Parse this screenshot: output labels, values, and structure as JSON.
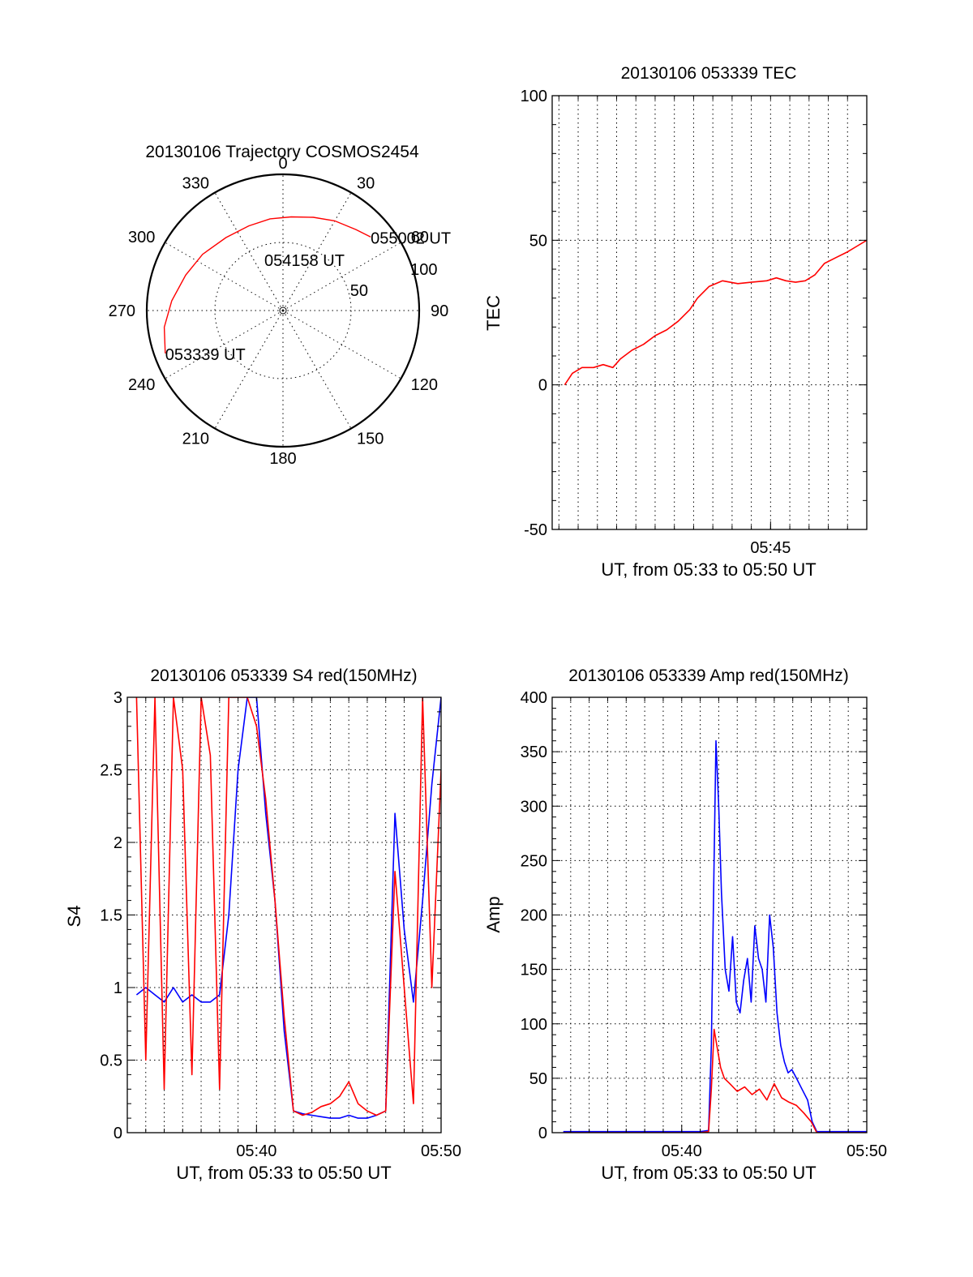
{
  "chart_data": [
    {
      "id": "polar",
      "type": "scatter",
      "projection": "polar",
      "title": "20130106 Trajectory COSMOS2454",
      "angle_labels": [
        "0",
        "30",
        "60",
        "90",
        "120",
        "150",
        "180",
        "210",
        "240",
        "270",
        "300",
        "330"
      ],
      "angle_values": [
        0,
        30,
        60,
        90,
        120,
        150,
        180,
        210,
        240,
        270,
        300,
        330
      ],
      "radial_labels": [
        "50",
        "100"
      ],
      "radial_values": [
        50,
        100
      ],
      "grid": true,
      "trajectory_color": "#ff0000",
      "trajectory": {
        "azimuth": [
          250,
          262,
          275,
          290,
          305,
          322,
          338,
          352,
          5,
          18,
          30,
          42,
          50
        ],
        "zenith": [
          92,
          88,
          82,
          76,
          72,
          68,
          67,
          68,
          69,
          72,
          76,
          80,
          84
        ]
      },
      "annotations": [
        {
          "text": "053339 UT",
          "azimuth": 250,
          "zenith": 92
        },
        {
          "text": "054158 UT",
          "azimuth": 340,
          "zenith": 40
        },
        {
          "text": "055002 UT",
          "azimuth": 50,
          "zenith": 84
        }
      ]
    },
    {
      "id": "tec",
      "type": "line",
      "title": "20130106 053339 TEC",
      "xlabel": "UT, from 05:33 to 05:50 UT",
      "ylabel": "TEC",
      "xlim": [
        33.65,
        50.0
      ],
      "ylim": [
        -50,
        100
      ],
      "x_ticks": [
        {
          "value": 45,
          "label": "05:45"
        }
      ],
      "y_ticks": [
        {
          "value": -50,
          "label": "-50"
        },
        {
          "value": 0,
          "label": "0"
        },
        {
          "value": 50,
          "label": "50"
        },
        {
          "value": 100,
          "label": "100"
        }
      ],
      "grid": true,
      "series": [
        {
          "color": "#ff0000",
          "x": [
            34.3,
            34.7,
            35.2,
            35.8,
            36.3,
            36.8,
            37.2,
            37.8,
            38.4,
            39.0,
            39.6,
            40.2,
            40.8,
            41.2,
            41.8,
            42.5,
            43.3,
            44.0,
            44.8,
            45.3,
            45.8,
            46.3,
            46.8,
            47.3,
            47.8,
            48.4,
            49.0,
            49.5,
            50.0
          ],
          "y": [
            0,
            4,
            6,
            6,
            7,
            6,
            9,
            12,
            14,
            17,
            19,
            22,
            26,
            30,
            34,
            36,
            35,
            35.5,
            36,
            37,
            36,
            35.5,
            36,
            38,
            42,
            44,
            46,
            48,
            50
          ]
        }
      ]
    },
    {
      "id": "s4",
      "type": "line",
      "title": "20130106 053339 S4 red(150MHz)",
      "xlabel": "UT, from 05:33 to 05:50 UT",
      "ylabel": "S4",
      "xlim": [
        33.0,
        50.0
      ],
      "ylim": [
        0,
        3
      ],
      "x_ticks": [
        {
          "value": 40,
          "label": "05:40"
        },
        {
          "value": 50,
          "label": "05:50"
        }
      ],
      "y_ticks": [
        {
          "value": 0,
          "label": "0"
        },
        {
          "value": 0.5,
          "label": "0.5"
        },
        {
          "value": 1,
          "label": "1"
        },
        {
          "value": 1.5,
          "label": "1.5"
        },
        {
          "value": 2,
          "label": "2"
        },
        {
          "value": 2.5,
          "label": "2.5"
        },
        {
          "value": 3,
          "label": "3"
        }
      ],
      "grid": true,
      "series": [
        {
          "color": "#0000ff",
          "x": [
            33.5,
            34.0,
            34.5,
            35.0,
            35.5,
            36.0,
            36.5,
            37.0,
            37.5,
            38.0,
            38.5,
            39.0,
            39.5,
            40.0,
            40.5,
            41.0,
            41.5,
            42.0,
            42.5,
            43.0,
            43.5,
            44.0,
            44.5,
            45.0,
            45.5,
            46.0,
            46.5,
            47.0,
            47.5,
            48.0,
            48.5,
            49.0,
            49.5,
            50.0
          ],
          "y": [
            0.95,
            1.0,
            0.95,
            0.9,
            1.0,
            0.9,
            0.95,
            0.9,
            0.9,
            0.95,
            1.5,
            2.5,
            3.0,
            3.0,
            2.2,
            1.6,
            0.7,
            0.15,
            0.13,
            0.12,
            0.11,
            0.1,
            0.1,
            0.12,
            0.1,
            0.1,
            0.12,
            0.15,
            2.2,
            1.4,
            0.9,
            1.6,
            2.4,
            3.0
          ]
        },
        {
          "color": "#ff0000",
          "x": [
            33.5,
            34.0,
            34.5,
            35.0,
            35.5,
            36.0,
            36.5,
            37.0,
            37.5,
            38.0,
            38.5,
            39.0,
            39.5,
            40.0,
            40.5,
            41.0,
            41.5,
            42.0,
            42.5,
            43.0,
            43.5,
            44.0,
            44.5,
            45.0,
            45.5,
            46.0,
            46.5,
            47.0,
            47.5,
            48.0,
            48.5,
            49.0,
            49.5,
            50.0
          ],
          "y": [
            3.0,
            0.5,
            3.0,
            0.3,
            3.0,
            2.5,
            0.4,
            3.0,
            2.6,
            0.3,
            3.0,
            3.0,
            3.0,
            2.8,
            2.3,
            1.6,
            0.8,
            0.15,
            0.12,
            0.14,
            0.18,
            0.2,
            0.25,
            0.35,
            0.2,
            0.15,
            0.12,
            0.15,
            1.8,
            1.0,
            0.2,
            3.0,
            1.0,
            2.5
          ]
        }
      ]
    },
    {
      "id": "amp",
      "type": "line",
      "title": "20130106 053339 Amp red(150MHz)",
      "xlabel": "UT, from 05:33 to 05:50 UT",
      "ylabel": "Amp",
      "xlim": [
        33.0,
        50.0
      ],
      "ylim": [
        0,
        400
      ],
      "x_ticks": [
        {
          "value": 40,
          "label": "05:40"
        },
        {
          "value": 50,
          "label": "05:50"
        }
      ],
      "y_ticks": [
        {
          "value": 0,
          "label": "0"
        },
        {
          "value": 50,
          "label": "50"
        },
        {
          "value": 100,
          "label": "100"
        },
        {
          "value": 150,
          "label": "150"
        },
        {
          "value": 200,
          "label": "200"
        },
        {
          "value": 250,
          "label": "250"
        },
        {
          "value": 300,
          "label": "300"
        },
        {
          "value": 350,
          "label": "350"
        },
        {
          "value": 400,
          "label": "400"
        }
      ],
      "grid": true,
      "series": [
        {
          "color": "#0000ff",
          "x": [
            33.6,
            36.0,
            38.0,
            40.0,
            41.0,
            41.45,
            41.6,
            41.75,
            41.85,
            42.0,
            42.15,
            42.35,
            42.55,
            42.75,
            42.95,
            43.15,
            43.35,
            43.55,
            43.75,
            43.95,
            44.15,
            44.35,
            44.55,
            44.75,
            44.95,
            45.15,
            45.35,
            45.55,
            45.75,
            45.95,
            46.2,
            46.5,
            46.8,
            47.05,
            47.3,
            48.5,
            50.0
          ],
          "y": [
            1,
            1,
            1,
            1,
            1,
            2,
            80,
            250,
            360,
            300,
            220,
            150,
            130,
            180,
            120,
            110,
            140,
            160,
            120,
            190,
            160,
            150,
            120,
            200,
            170,
            110,
            80,
            65,
            55,
            58,
            50,
            40,
            30,
            10,
            1,
            1,
            1
          ]
        },
        {
          "color": "#ff0000",
          "x": [
            33.6,
            36.0,
            38.0,
            40.0,
            41.0,
            41.45,
            41.6,
            41.75,
            41.9,
            42.1,
            42.3,
            42.6,
            43.0,
            43.4,
            43.8,
            44.2,
            44.6,
            45.0,
            45.4,
            45.8,
            46.2,
            46.6,
            47.0,
            47.3,
            48.5,
            50.0
          ],
          "y": [
            0,
            0,
            0,
            0,
            0,
            1,
            40,
            95,
            80,
            60,
            50,
            45,
            38,
            42,
            35,
            40,
            30,
            45,
            32,
            28,
            25,
            18,
            10,
            0,
            0,
            0
          ]
        }
      ]
    }
  ]
}
